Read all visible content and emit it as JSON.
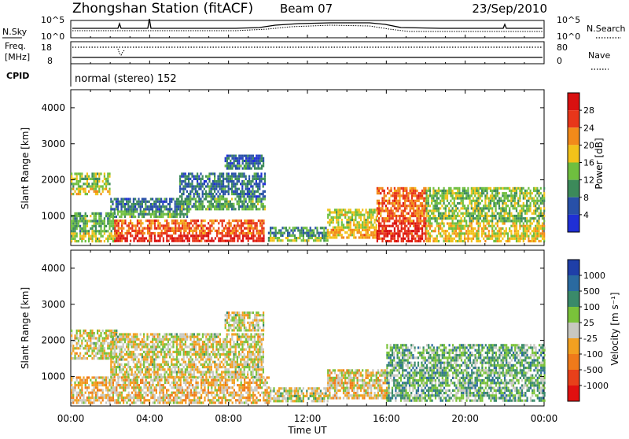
{
  "header": {
    "station": "Zhongshan Station (fitACF)",
    "beam": "Beam 07",
    "date": "23/Sep/2010"
  },
  "noise_panel": {
    "left_label": "N.Sky",
    "right_label": "N.Search",
    "left_ticks": [
      "10^5",
      "10^0"
    ],
    "right_ticks": [
      "10^5",
      "10^0"
    ]
  },
  "freq_panel": {
    "left_label_line1": "Freq.",
    "left_label_line2": "[MHz]",
    "right_label": "Nave",
    "left_ticks": [
      "18",
      "8"
    ],
    "right_ticks": [
      "80",
      "0"
    ]
  },
  "cpid_panel": {
    "label": "CPID",
    "mode_text": "normal (stereo) 152"
  },
  "power_panel": {
    "ylabel": "Slant Range [km]",
    "y_ticks": [
      "1000",
      "2000",
      "3000",
      "4000"
    ],
    "colorbar_label": "Power [dB]",
    "colorbar_ticks": [
      "4",
      "8",
      "12",
      "16",
      "20",
      "24",
      "28"
    ],
    "colorbar_colors": [
      "#1f2fd6",
      "#2850a8",
      "#3c8a5a",
      "#6fbf3f",
      "#f2c21a",
      "#f28a1a",
      "#e8361a",
      "#d91010"
    ]
  },
  "velocity_panel": {
    "ylabel": "Slant Range [km]",
    "y_ticks": [
      "1000",
      "2000",
      "3000",
      "4000"
    ],
    "colorbar_label": "Velocity [m s⁻¹]",
    "colorbar_ticks": [
      "1000",
      "500",
      "100",
      "25",
      "-25",
      "-100",
      "-500",
      "-1000"
    ],
    "colorbar_colors": [
      "#1f3fa8",
      "#2a6aa0",
      "#3a8a6a",
      "#7ac23a",
      "#c8c8c0",
      "#f2a020",
      "#ef7a1a",
      "#e8401a",
      "#e01010"
    ]
  },
  "time_axis": {
    "label": "Time UT",
    "ticks": [
      "00:00",
      "04:00",
      "08:00",
      "12:00",
      "16:00",
      "20:00",
      "00:00"
    ]
  },
  "chart_data": [
    {
      "type": "heatmap",
      "title": "Power",
      "xlabel": "Time UT",
      "ylabel": "Slant Range [km]",
      "xlim": [
        "00:00",
        "24:00"
      ],
      "ylim": [
        180,
        4500
      ],
      "zlabel": "Power [dB]",
      "zlim": [
        0,
        32
      ],
      "regions": [
        {
          "t0": 0.0,
          "t1": 2.2,
          "r0": 300,
          "r1": 1100,
          "z": 12
        },
        {
          "t0": 2.2,
          "t1": 9.8,
          "r0": 300,
          "r1": 900,
          "z": 24
        },
        {
          "t0": 0.0,
          "t1": 2.0,
          "r0": 1600,
          "r1": 2200,
          "z": 14
        },
        {
          "t0": 2.0,
          "t1": 6.0,
          "r0": 1000,
          "r1": 1500,
          "z": 8
        },
        {
          "t0": 5.5,
          "t1": 9.8,
          "r0": 1200,
          "r1": 2200,
          "z": 8
        },
        {
          "t0": 7.8,
          "t1": 9.8,
          "r0": 2300,
          "r1": 2700,
          "z": 6
        },
        {
          "t0": 10.0,
          "t1": 13.0,
          "r0": 300,
          "r1": 700,
          "z": 10
        },
        {
          "t0": 13.0,
          "t1": 15.5,
          "r0": 400,
          "r1": 1200,
          "z": 16
        },
        {
          "t0": 15.5,
          "t1": 18.0,
          "r0": 300,
          "r1": 1800,
          "z": 24
        },
        {
          "t0": 18.0,
          "t1": 24.0,
          "r0": 300,
          "r1": 1800,
          "z": 14
        }
      ]
    },
    {
      "type": "heatmap",
      "title": "Velocity",
      "xlabel": "Time UT",
      "ylabel": "Slant Range [km]",
      "xlim": [
        "00:00",
        "24:00"
      ],
      "ylim": [
        180,
        4500
      ],
      "zlabel": "Velocity [m s⁻¹]",
      "zlim": [
        -1000,
        1000
      ],
      "regions": [
        {
          "t0": 0.0,
          "t1": 10.0,
          "r0": 300,
          "r1": 1000,
          "z": -150
        },
        {
          "t0": 0.0,
          "t1": 2.3,
          "r0": 1500,
          "r1": 2300,
          "z": 0
        },
        {
          "t0": 2.0,
          "t1": 9.8,
          "r0": 1000,
          "r1": 2200,
          "z": 0
        },
        {
          "t0": 7.8,
          "t1": 9.8,
          "r0": 2300,
          "r1": 2800,
          "z": 0
        },
        {
          "t0": 10.0,
          "t1": 13.0,
          "r0": 300,
          "r1": 700,
          "z": 50
        },
        {
          "t0": 13.0,
          "t1": 16.0,
          "r0": 400,
          "r1": 1200,
          "z": -100
        },
        {
          "t0": 16.0,
          "t1": 24.0,
          "r0": 300,
          "r1": 1900,
          "z": 300
        }
      ]
    }
  ]
}
